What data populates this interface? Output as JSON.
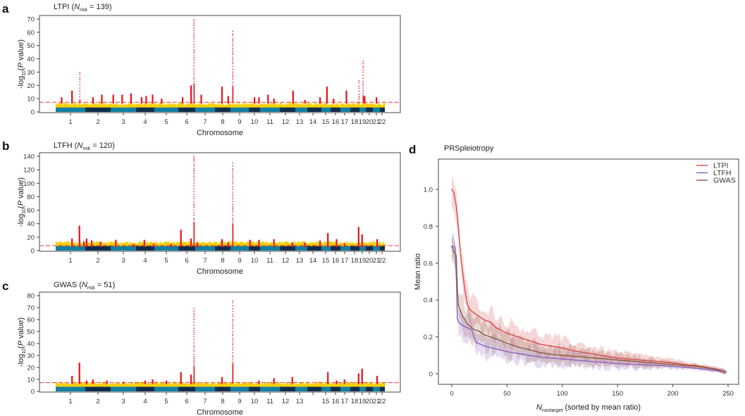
{
  "colors": {
    "chrom_light": "#127fa3",
    "chrom_dark": "#0b2d4b",
    "suggestive": "#f5cf0a",
    "significant": "#e8101a",
    "threshold_line": "#e8333a",
    "LTPI": "#d6474c",
    "LTFH": "#8a5cc4",
    "GWAS": "#8b5a3a"
  },
  "chart_data": [
    {
      "type": "scatter",
      "subtype": "manhattan",
      "panel": "a",
      "title": "LTPI",
      "n_label": "N",
      "n_sub": "risk",
      "n_value": "139",
      "xlabel": "Chromosome",
      "ylabel": "-log10(P value)",
      "ylim": [
        0,
        72
      ],
      "yticks": [
        0,
        10,
        20,
        30,
        40,
        50,
        60,
        70
      ],
      "xtick_labels": [
        "1",
        "2",
        "3",
        "4",
        "5",
        "6",
        "7",
        "8",
        "9",
        "10",
        "11",
        "12",
        "13",
        "14",
        "15",
        "16",
        "17",
        "18",
        "19",
        "20",
        "21",
        "22"
      ],
      "threshold": 7.3,
      "peaks": [
        {
          "chrom": "1",
          "pos": 0.55,
          "value": 16
        },
        {
          "chrom": "1",
          "pos": 0.8,
          "value": 31
        },
        {
          "chrom": "1",
          "pos": 0.2,
          "value": 11
        },
        {
          "chrom": "2",
          "pos": 0.3,
          "value": 11
        },
        {
          "chrom": "2",
          "pos": 0.65,
          "value": 13
        },
        {
          "chrom": "3",
          "pos": 0.1,
          "value": 13
        },
        {
          "chrom": "3",
          "pos": 0.45,
          "value": 13
        },
        {
          "chrom": "3",
          "pos": 0.8,
          "value": 14
        },
        {
          "chrom": "4",
          "pos": 0.3,
          "value": 11
        },
        {
          "chrom": "4",
          "pos": 0.55,
          "value": 12
        },
        {
          "chrom": "4",
          "pos": 0.9,
          "value": 13
        },
        {
          "chrom": "5",
          "pos": 0.3,
          "value": 10
        },
        {
          "chrom": "6",
          "pos": 0.25,
          "value": 11
        },
        {
          "chrom": "6",
          "pos": 0.9,
          "value": 71
        },
        {
          "chrom": "6",
          "pos": 0.75,
          "value": 20
        },
        {
          "chrom": "7",
          "pos": 0.3,
          "value": 13
        },
        {
          "chrom": "8",
          "pos": 0.45,
          "value": 19
        },
        {
          "chrom": "8",
          "pos": 0.85,
          "value": 12
        },
        {
          "chrom": "9",
          "pos": 0.1,
          "value": 63
        },
        {
          "chrom": "10",
          "pos": 0.5,
          "value": 11
        },
        {
          "chrom": "10",
          "pos": 0.9,
          "value": 11
        },
        {
          "chrom": "11",
          "pos": 0.4,
          "value": 13
        },
        {
          "chrom": "11",
          "pos": 0.7,
          "value": 10
        },
        {
          "chrom": "12",
          "pos": 0.85,
          "value": 16
        },
        {
          "chrom": "13",
          "pos": 0.8,
          "value": 9
        },
        {
          "chrom": "14",
          "pos": 0.9,
          "value": 11
        },
        {
          "chrom": "15",
          "pos": 0.6,
          "value": 19
        },
        {
          "chrom": "16",
          "pos": 0.3,
          "value": 10
        },
        {
          "chrom": "17",
          "pos": 0.6,
          "value": 16
        },
        {
          "chrom": "18",
          "pos": 0.9,
          "value": 25
        },
        {
          "chrom": "19",
          "pos": 0.5,
          "value": 40
        },
        {
          "chrom": "19",
          "pos": 0.8,
          "value": 12
        },
        {
          "chrom": "21",
          "pos": 0.5,
          "value": 11
        }
      ]
    },
    {
      "type": "scatter",
      "subtype": "manhattan",
      "panel": "b",
      "title": "LTFH",
      "n_label": "N",
      "n_sub": "risk",
      "n_value": "120",
      "xlabel": "Chromosome",
      "ylabel": "-log10(P value)",
      "ylim": [
        0,
        144
      ],
      "yticks": [
        0,
        20,
        40,
        60,
        80,
        100,
        120,
        140
      ],
      "xtick_labels": [
        "1",
        "2",
        "3",
        "4",
        "5",
        "6",
        "7",
        "8",
        "9",
        "10",
        "11",
        "12",
        "13",
        "14",
        "15",
        "16",
        "17",
        "18",
        "19",
        "20",
        "21",
        "22"
      ],
      "threshold": 7.3,
      "peaks": [
        {
          "chrom": "1",
          "pos": 0.55,
          "value": 18
        },
        {
          "chrom": "1",
          "pos": 0.8,
          "value": 37
        },
        {
          "chrom": "1",
          "pos": 0.95,
          "value": 14
        },
        {
          "chrom": "2",
          "pos": 0.05,
          "value": 18
        },
        {
          "chrom": "2",
          "pos": 0.25,
          "value": 15
        },
        {
          "chrom": "2",
          "pos": 0.6,
          "value": 13
        },
        {
          "chrom": "3",
          "pos": 0.2,
          "value": 16
        },
        {
          "chrom": "3",
          "pos": 0.9,
          "value": 10
        },
        {
          "chrom": "4",
          "pos": 0.45,
          "value": 16
        },
        {
          "chrom": "4",
          "pos": 0.95,
          "value": 10
        },
        {
          "chrom": "5",
          "pos": 0.7,
          "value": 10
        },
        {
          "chrom": "6",
          "pos": 0.15,
          "value": 31
        },
        {
          "chrom": "6",
          "pos": 0.9,
          "value": 141
        },
        {
          "chrom": "6",
          "pos": 0.75,
          "value": 18
        },
        {
          "chrom": "7",
          "pos": 0.1,
          "value": 12
        },
        {
          "chrom": "8",
          "pos": 0.45,
          "value": 17
        },
        {
          "chrom": "8",
          "pos": 0.85,
          "value": 12
        },
        {
          "chrom": "9",
          "pos": 0.1,
          "value": 133
        },
        {
          "chrom": "10",
          "pos": 0.1,
          "value": 16
        },
        {
          "chrom": "10",
          "pos": 0.9,
          "value": 16
        },
        {
          "chrom": "11",
          "pos": 0.7,
          "value": 17
        },
        {
          "chrom": "12",
          "pos": 0.8,
          "value": 12
        },
        {
          "chrom": "13",
          "pos": 0.8,
          "value": 12
        },
        {
          "chrom": "14",
          "pos": 0.9,
          "value": 15
        },
        {
          "chrom": "15",
          "pos": 0.7,
          "value": 26
        },
        {
          "chrom": "16",
          "pos": 0.6,
          "value": 17
        },
        {
          "chrom": "17",
          "pos": 0.4,
          "value": 11
        },
        {
          "chrom": "18",
          "pos": 0.9,
          "value": 35
        },
        {
          "chrom": "19",
          "pos": 0.4,
          "value": 24
        },
        {
          "chrom": "21",
          "pos": 0.6,
          "value": 17
        }
      ]
    },
    {
      "type": "scatter",
      "subtype": "manhattan",
      "panel": "c",
      "title": "GWAS",
      "n_label": "N",
      "n_sub": "risk",
      "n_value": "51",
      "xlabel": "Chromosome",
      "ylabel": "-log10(P value)",
      "ylim": [
        0,
        80
      ],
      "yticks": [
        0,
        10,
        20,
        30,
        40,
        50,
        60,
        70,
        80
      ],
      "xtick_labels": [
        "1",
        "2",
        "3",
        "4",
        "5",
        "6",
        "7",
        "8",
        "9",
        "10",
        "11",
        "12",
        "13",
        "",
        "15",
        "16",
        "17",
        "18",
        "19",
        "20",
        "21",
        "22"
      ],
      "threshold": 7.3,
      "peaks": [
        {
          "chrom": "1",
          "pos": 0.55,
          "value": 13
        },
        {
          "chrom": "1",
          "pos": 0.8,
          "value": 24
        },
        {
          "chrom": "2",
          "pos": 0.05,
          "value": 9
        },
        {
          "chrom": "2",
          "pos": 0.3,
          "value": 10
        },
        {
          "chrom": "2",
          "pos": 0.85,
          "value": 9
        },
        {
          "chrom": "3",
          "pos": 0.5,
          "value": 8
        },
        {
          "chrom": "4",
          "pos": 0.5,
          "value": 9
        },
        {
          "chrom": "4",
          "pos": 0.9,
          "value": 10
        },
        {
          "chrom": "5",
          "pos": 0.5,
          "value": 9
        },
        {
          "chrom": "6",
          "pos": 0.15,
          "value": 16
        },
        {
          "chrom": "6",
          "pos": 0.9,
          "value": 70
        },
        {
          "chrom": "6",
          "pos": 0.75,
          "value": 14
        },
        {
          "chrom": "8",
          "pos": 0.45,
          "value": 12
        },
        {
          "chrom": "9",
          "pos": 0.1,
          "value": 78
        },
        {
          "chrom": "10",
          "pos": 0.9,
          "value": 9
        },
        {
          "chrom": "11",
          "pos": 0.7,
          "value": 11
        },
        {
          "chrom": "12",
          "pos": 0.8,
          "value": 12
        },
        {
          "chrom": "15",
          "pos": 0.7,
          "value": 16
        },
        {
          "chrom": "16",
          "pos": 0.6,
          "value": 9
        },
        {
          "chrom": "17",
          "pos": 0.4,
          "value": 10
        },
        {
          "chrom": "18",
          "pos": 0.9,
          "value": 15
        },
        {
          "chrom": "19",
          "pos": 0.4,
          "value": 19
        },
        {
          "chrom": "21",
          "pos": 0.6,
          "value": 13
        }
      ]
    },
    {
      "type": "line",
      "panel": "d",
      "title": "PRSpleiotropy",
      "xlabel_main": "N",
      "xlabel_sub": "nontarget",
      "xlabel_rest": " (sorted by mean ratio)",
      "ylabel": "Mean ratio",
      "xlim": [
        -12,
        260
      ],
      "ylim": [
        -0.05,
        1.14
      ],
      "xticks": [
        0,
        50,
        100,
        150,
        200,
        250
      ],
      "yticks": [
        0,
        0.2,
        0.4,
        0.6,
        0.8,
        1.0
      ],
      "ytick_labels": [
        "0",
        "0.2",
        "0.4",
        "0.6",
        "0.8",
        "1.0"
      ],
      "legend_position": "top-right",
      "series": [
        {
          "name": "LTPI",
          "x": [
            0,
            2,
            4,
            6,
            8,
            10,
            12,
            14,
            16,
            20,
            25,
            30,
            35,
            40,
            50,
            60,
            70,
            80,
            90,
            100,
            110,
            120,
            130,
            140,
            150,
            160,
            170,
            180,
            190,
            200,
            210,
            220,
            230,
            240,
            248
          ],
          "values": [
            1.0,
            0.98,
            0.91,
            0.79,
            0.64,
            0.54,
            0.45,
            0.38,
            0.35,
            0.33,
            0.31,
            0.29,
            0.28,
            0.25,
            0.22,
            0.2,
            0.18,
            0.16,
            0.15,
            0.14,
            0.125,
            0.115,
            0.105,
            0.095,
            0.085,
            0.08,
            0.075,
            0.07,
            0.065,
            0.06,
            0.05,
            0.045,
            0.035,
            0.025,
            0.01
          ],
          "band": 0.07
        },
        {
          "name": "LTFH",
          "x": [
            0,
            2,
            3,
            4,
            5,
            6,
            8,
            10,
            14,
            18,
            20,
            22,
            30,
            40,
            50,
            60,
            70,
            80,
            90,
            100,
            110,
            120,
            130,
            140,
            150,
            160,
            170,
            180,
            190,
            200,
            210,
            220,
            230,
            240,
            248
          ],
          "values": [
            0.69,
            0.69,
            0.68,
            0.55,
            0.3,
            0.28,
            0.27,
            0.26,
            0.25,
            0.24,
            0.2,
            0.17,
            0.15,
            0.135,
            0.12,
            0.11,
            0.1,
            0.09,
            0.085,
            0.08,
            0.075,
            0.07,
            0.065,
            0.06,
            0.055,
            0.052,
            0.05,
            0.047,
            0.044,
            0.04,
            0.036,
            0.03,
            0.024,
            0.017,
            0.008
          ],
          "band": 0.06
        },
        {
          "name": "GWAS",
          "x": [
            0,
            2,
            4,
            5,
            6,
            8,
            10,
            14,
            18,
            20,
            25,
            30,
            40,
            50,
            60,
            70,
            80,
            90,
            100,
            110,
            120,
            130,
            140,
            150,
            160,
            170,
            180,
            190,
            200,
            210,
            220,
            230,
            240,
            248
          ],
          "values": [
            0.69,
            0.66,
            0.64,
            0.46,
            0.37,
            0.34,
            0.31,
            0.27,
            0.25,
            0.24,
            0.23,
            0.21,
            0.19,
            0.165,
            0.145,
            0.13,
            0.115,
            0.105,
            0.1,
            0.095,
            0.09,
            0.085,
            0.08,
            0.075,
            0.07,
            0.065,
            0.06,
            0.055,
            0.05,
            0.045,
            0.04,
            0.033,
            0.022,
            0.01
          ],
          "band": 0.07
        }
      ]
    }
  ]
}
